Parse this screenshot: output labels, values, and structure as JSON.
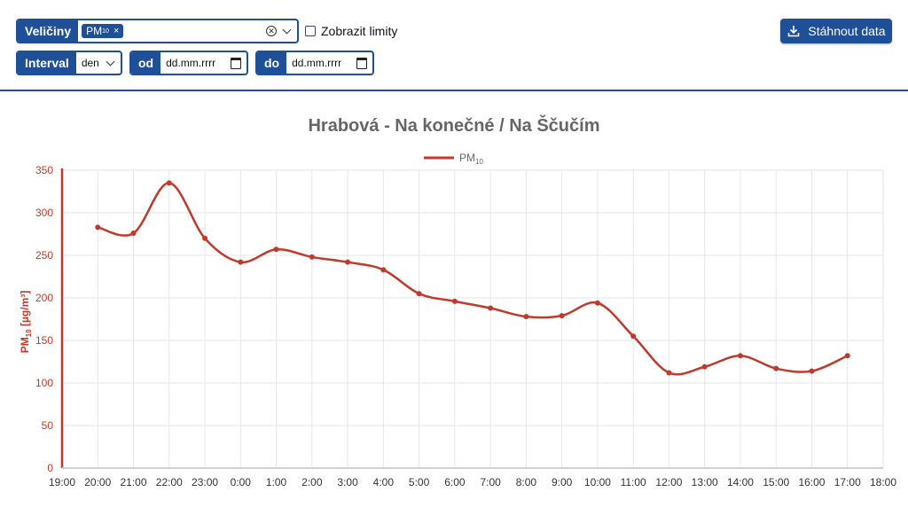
{
  "controls": {
    "quantities_label": "Veličiny",
    "selected_chip": "PM",
    "selected_chip_sub": "10",
    "chip_remove": "×",
    "show_limits_label": "Zobrazit limity",
    "download_label": "Stáhnout data",
    "interval_label": "Interval",
    "interval_value": "den",
    "from_label": "od",
    "from_placeholder": "dd.mm.rrrr",
    "to_label": "do",
    "to_placeholder": "dd.mm.rrrr"
  },
  "colors": {
    "accent": "#1f4f96",
    "series": "#c0392b",
    "title": "#666666",
    "grid": "#e6e6e6"
  },
  "chart_data": {
    "type": "line",
    "title": "Hrabová - Na konečné / Na Ščučím",
    "ylabel": "PM₁₀ [µg/m³]",
    "ylim": [
      0,
      350
    ],
    "yticks": [
      0,
      50,
      100,
      150,
      200,
      250,
      300,
      350
    ],
    "x_ticks": [
      "19:00",
      "20:00",
      "21:00",
      "22:00",
      "23:00",
      "0:00",
      "1:00",
      "2:00",
      "3:00",
      "4:00",
      "5:00",
      "6:00",
      "7:00",
      "8:00",
      "9:00",
      "10:00",
      "11:00",
      "12:00",
      "13:00",
      "14:00",
      "15:00",
      "16:00",
      "17:00",
      "18:00"
    ],
    "grid": true,
    "legend_position": "top-center",
    "series": [
      {
        "name": "PM₁₀",
        "x": [
          "20:00",
          "21:00",
          "22:00",
          "23:00",
          "0:00",
          "1:00",
          "2:00",
          "3:00",
          "4:00",
          "5:00",
          "6:00",
          "7:00",
          "8:00",
          "9:00",
          "10:00",
          "11:00",
          "12:00",
          "13:00",
          "14:00",
          "15:00",
          "16:00",
          "17:00"
        ],
        "values": [
          283,
          276,
          335,
          270,
          242,
          257,
          248,
          242,
          233,
          205,
          196,
          188,
          178,
          179,
          194,
          155,
          112,
          119,
          132,
          117,
          114,
          132
        ]
      }
    ]
  }
}
